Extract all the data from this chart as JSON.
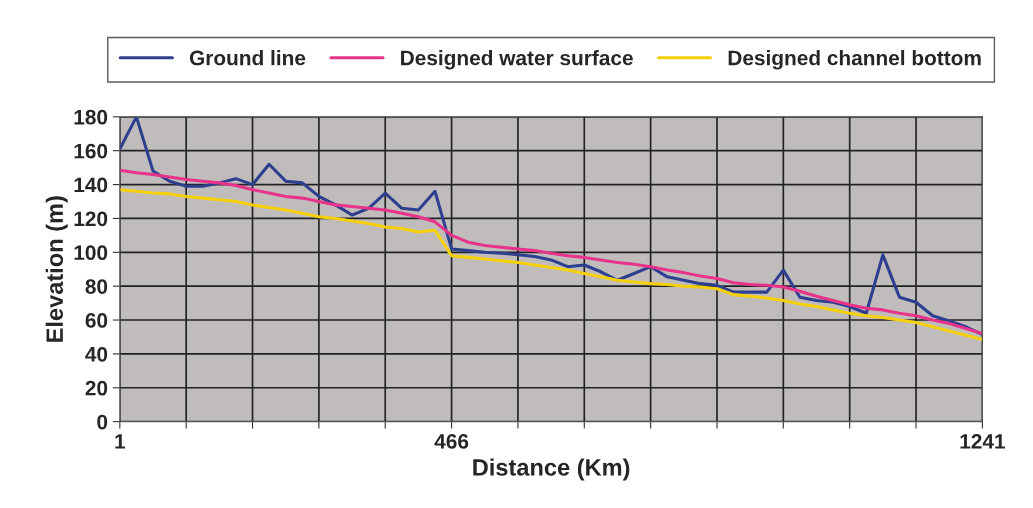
{
  "chart_data": {
    "type": "line",
    "xlabel": "Distance (Km)",
    "ylabel": "Elevation (m)",
    "categories": [
      "1",
      null,
      null,
      null,
      null,
      null,
      null,
      null,
      null,
      null,
      null,
      null,
      null,
      null,
      null,
      null,
      null,
      null,
      null,
      null,
      "466",
      null,
      null,
      null,
      null,
      null,
      null,
      null,
      null,
      null,
      null,
      null,
      null,
      null,
      null,
      null,
      null,
      null,
      null,
      null,
      null,
      null,
      null,
      null,
      null,
      null,
      null,
      null,
      null,
      null,
      null,
      null,
      "1241"
    ],
    "series": [
      {
        "name": "Ground line",
        "color": "#2e3f8f",
        "values": [
          161,
          180,
          148,
          142,
          139,
          139,
          141,
          143.5,
          140,
          152,
          142,
          141,
          133,
          128,
          122,
          126,
          135,
          126,
          125,
          136,
          102,
          101,
          100,
          99.5,
          98.5,
          97.5,
          95.5,
          91.5,
          92.5,
          88.5,
          83.5,
          87.5,
          91.5,
          85.5,
          83.5,
          81.5,
          80.5,
          76.5,
          76.5,
          76.5,
          89.5,
          73.5,
          71.5,
          70.5,
          68,
          64,
          98.5,
          73.5,
          70.5,
          62.5,
          59.5,
          56,
          51.5
        ]
      },
      {
        "name": "Designed water surface",
        "color": "#e8338a",
        "values": [
          148.5,
          147,
          146,
          144.5,
          143,
          142,
          141,
          139.5,
          137,
          135,
          133,
          132,
          130,
          128,
          127,
          126,
          125,
          123,
          121,
          118,
          110,
          106,
          104,
          103,
          102,
          101,
          99.5,
          98,
          97,
          95.5,
          94,
          93,
          91.5,
          89.5,
          88,
          86,
          84.5,
          82,
          81,
          80.5,
          79.5,
          77,
          74,
          71.5,
          69,
          67,
          66,
          64,
          62.5,
          60,
          58,
          55,
          52
        ]
      },
      {
        "name": "Designed channel bottom",
        "color": "#f5d10c",
        "values": [
          137,
          136,
          135,
          134.5,
          133,
          132,
          131,
          130,
          128,
          126.5,
          125,
          123,
          121,
          120,
          118.5,
          117,
          115,
          114,
          112,
          113,
          98,
          97,
          96,
          95,
          94,
          92.5,
          91,
          89.5,
          87.5,
          85.5,
          83.5,
          82.5,
          81.5,
          81,
          80,
          79.5,
          78.5,
          75,
          74,
          73,
          71.5,
          69.5,
          68,
          66,
          64,
          62.5,
          61.5,
          60,
          58.5,
          56,
          53.5,
          51,
          48.5
        ]
      }
    ],
    "ylim": [
      0,
      180
    ],
    "yticks": [
      0,
      20,
      40,
      60,
      80,
      100,
      120,
      140,
      160,
      180
    ],
    "grid": true,
    "legend": "top",
    "marker": "none",
    "line_style": "solid"
  }
}
